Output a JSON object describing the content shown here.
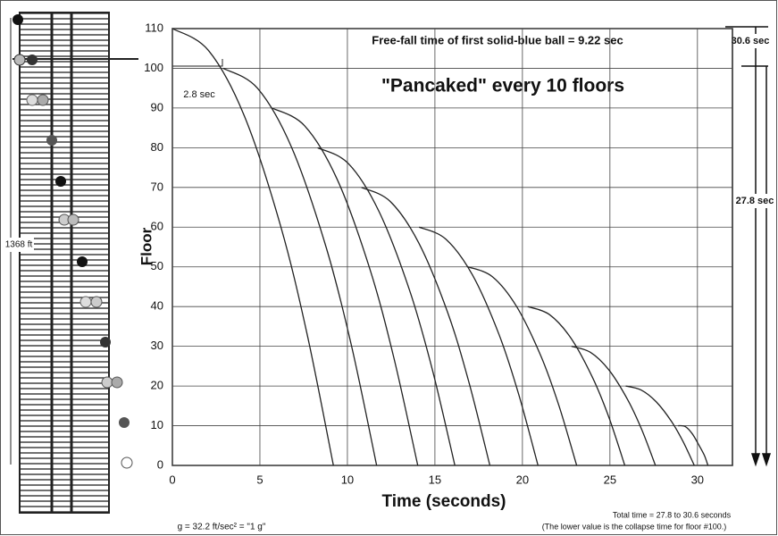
{
  "chart_data": {
    "type": "line",
    "title": "Free-fall time of first solid-blue ball  =  9.22 sec",
    "subtitle": "\"Pancaked\" every 10 floors",
    "x_label": "Time  (seconds)",
    "y_label": "Floor",
    "annotations": [
      "2.8 sec",
      "30.6 sec",
      "27.8 sec",
      "1368  ft"
    ],
    "footer_left": "g = 32.2 ft/sec²  =  \"1 g\"",
    "footer_right": [
      "Total time = 27.8 to 30.6 seconds",
      "(The lower value is the collapse time for floor #100.)"
    ],
    "xlim": [
      0,
      32
    ],
    "ylim": [
      0,
      110
    ],
    "xticks": [
      0,
      5,
      10,
      15,
      20,
      25,
      30
    ],
    "yticks": [
      0,
      10,
      20,
      30,
      40,
      50,
      60,
      70,
      80,
      90,
      100,
      110
    ],
    "grid": true,
    "color": "#222222",
    "series": [
      {
        "x": [
          0,
          2.06,
          4.11,
          6.17,
          7.7,
          9.2
        ],
        "values": [
          110,
          104.5,
          88,
          60.5,
          33,
          0
        ]
      },
      {
        "x": [
          2.9,
          4.86,
          6.82,
          8.78,
          10.24,
          11.67
        ],
        "values": [
          100,
          95,
          80,
          55,
          30,
          0
        ]
      },
      {
        "x": [
          5.7,
          7.56,
          9.42,
          11.28,
          12.66,
          14.02
        ],
        "values": [
          90,
          85.5,
          72,
          49.5,
          27,
          0
        ]
      },
      {
        "x": [
          8.3,
          10.06,
          11.8,
          13.56,
          14.86,
          16.14
        ],
        "values": [
          80,
          76,
          64,
          44,
          24,
          0
        ]
      },
      {
        "x": [
          10.8,
          12.44,
          14.08,
          15.73,
          16.94,
          18.14
        ],
        "values": [
          70,
          66.5,
          56,
          38.5,
          21,
          0
        ]
      },
      {
        "x": [
          14.1,
          15.62,
          17.14,
          18.66,
          19.78,
          20.89
        ],
        "values": [
          60,
          57,
          48,
          33,
          18,
          0
        ]
      },
      {
        "x": [
          16.9,
          18.29,
          19.67,
          21.06,
          22.09,
          23.1
        ],
        "values": [
          50,
          47.5,
          40,
          27.5,
          15,
          0
        ]
      },
      {
        "x": [
          20.3,
          21.54,
          22.78,
          24.02,
          24.95,
          25.85
        ],
        "values": [
          40,
          38,
          32,
          22,
          12,
          0
        ]
      },
      {
        "x": [
          22.8,
          23.88,
          24.95,
          26.02,
          26.82,
          27.6
        ],
        "values": [
          30,
          28.5,
          24,
          16.5,
          9,
          0
        ]
      },
      {
        "x": [
          25.9,
          26.78,
          27.65,
          28.53,
          29.18,
          29.82
        ],
        "values": [
          20,
          19,
          16,
          11,
          6,
          0
        ]
      },
      {
        "x": [
          28.9,
          29.3,
          29.7,
          30.1,
          30.4,
          30.6
        ],
        "values": [
          10,
          9.8,
          8,
          5,
          2.5,
          0
        ]
      }
    ]
  }
}
